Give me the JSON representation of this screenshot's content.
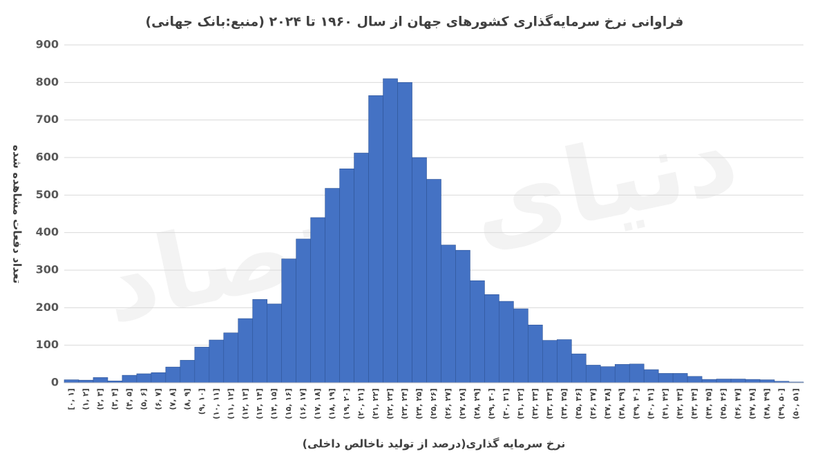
{
  "chart_data": {
    "type": "bar",
    "title": "فراوانی نرخ سرمایه‌گذاری کشورهای جهان از سال ۱۹۶۰ تا ۲۰۲۴ (منبع:بانک جهانی)",
    "xlabel": "نرخ سرمایه گذاری(درصد از تولید ناخالص داخلی)",
    "ylabel": "تعداد دفعات مشاهده شده",
    "watermark": "دنیای اقتصاد",
    "categories": [
      "[۰, ۱]",
      "(۱, ۲]",
      "(۲, ۳]",
      "(۳, ۴]",
      "(۴, ۵]",
      "(۵, ۶]",
      "(۶, ۷]",
      "(۷, ۸]",
      "(۸, ۹]",
      "(۹, ۱۰]",
      "(۱۰, ۱۱]",
      "(۱۱, ۱۲]",
      "(۱۲, ۱۳]",
      "(۱۳, ۱۴]",
      "(۱۴, ۱۵]",
      "(۱۵, ۱۶]",
      "(۱۶, ۱۷]",
      "(۱۷, ۱۸]",
      "(۱۸, ۱۹]",
      "(۱۹, ۲۰]",
      "(۲۰, ۲۱]",
      "(۲۱, ۲۲]",
      "(۲۲, ۲۳]",
      "(۲۳, ۲۴]",
      "(۲۴, ۲۵]",
      "(۲۵, ۲۶]",
      "(۲۶, ۲۷]",
      "(۲۷, ۲۸]",
      "(۲۸, ۲۹]",
      "(۲۹, ۳۰]",
      "(۳۰, ۳۱]",
      "(۳۱, ۳۲]",
      "(۳۲, ۳۳]",
      "(۳۳, ۳۴]",
      "(۳۴, ۳۵]",
      "(۳۵, ۳۶]",
      "(۳۶, ۳۷]",
      "(۳۷, ۳۸]",
      "(۳۸, ۳۹]",
      "(۳۹, ۴۰]",
      "(۴۰, ۴۱]",
      "(۴۱, ۴۲]",
      "(۴۲, ۴۳]",
      "(۴۳, ۴۴]",
      "(۴۴, ۴۵]",
      "(۴۵, ۴۶]",
      "(۴۶, ۴۷]",
      "(۴۷, ۴۸]",
      "(۴۸, ۴۹]",
      "(۴۹, ۵۰]",
      "(۵۰, ۵۱]"
    ],
    "values": [
      8,
      7,
      14,
      5,
      20,
      24,
      27,
      42,
      60,
      95,
      114,
      133,
      171,
      222,
      210,
      330,
      383,
      440,
      518,
      570,
      612,
      765,
      810,
      800,
      600,
      542,
      367,
      353,
      272,
      235,
      217,
      197,
      154,
      113,
      115,
      77,
      47,
      43,
      49,
      50,
      35,
      25,
      25,
      17,
      9,
      10,
      10,
      9,
      8,
      4,
      2
    ],
    "color": "#4472c4",
    "ylim": [
      0,
      900
    ],
    "yticks": [
      0,
      100,
      200,
      300,
      400,
      500,
      600,
      700,
      800,
      900
    ],
    "grid": true
  }
}
